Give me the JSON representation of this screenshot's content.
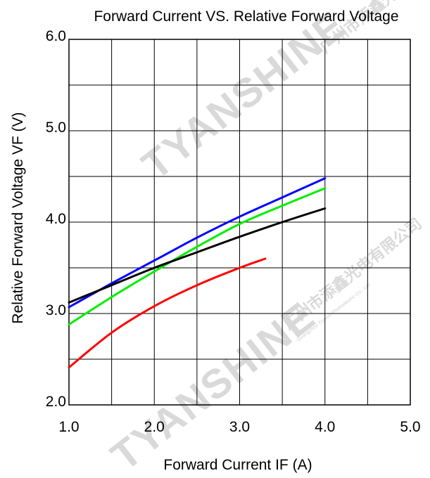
{
  "chart_data": {
    "type": "line",
    "title": "Forward Current VS.  Relative Forward Voltage",
    "xlabel": "Forward Current IF  (A)",
    "ylabel": "Relative Forward  Voltage  VF  (V)",
    "xlim": [
      1.0,
      5.0
    ],
    "ylim": [
      2.0,
      6.0
    ],
    "xticks": [
      "1.0",
      "2.0",
      "3.0",
      "4.0",
      "5.0"
    ],
    "yticks": [
      "2.0",
      "3.0",
      "4.0",
      "5.0",
      "6.0"
    ],
    "grid": true,
    "legend": "none",
    "series": [
      {
        "color": "#0000ff",
        "x": [
          1.0,
          1.5,
          2.0,
          2.5,
          3.0,
          3.5,
          4.0
        ],
        "y": [
          3.07,
          3.33,
          3.58,
          3.83,
          4.06,
          4.27,
          4.48
        ]
      },
      {
        "color": "#00ee00",
        "x": [
          1.0,
          1.5,
          2.0,
          2.5,
          3.0,
          3.5,
          4.0
        ],
        "y": [
          2.88,
          3.18,
          3.46,
          3.73,
          3.98,
          4.18,
          4.37
        ]
      },
      {
        "color": "#000000",
        "x": [
          1.0,
          1.5,
          2.0,
          2.5,
          3.0,
          3.5,
          4.0
        ],
        "y": [
          3.12,
          3.31,
          3.5,
          3.67,
          3.84,
          4.0,
          4.15
        ]
      },
      {
        "color": "#ff0000",
        "x": [
          1.0,
          1.5,
          2.0,
          2.5,
          3.0,
          3.3
        ],
        "y": [
          2.41,
          2.79,
          3.08,
          3.31,
          3.5,
          3.6
        ]
      }
    ]
  },
  "watermark": {
    "brand": "TYANSHINE",
    "company_cn": "广州市添鑫光电有限公司",
    "company_en": "Guangzhou Tianxin Photoelectric Co., Ltd."
  }
}
